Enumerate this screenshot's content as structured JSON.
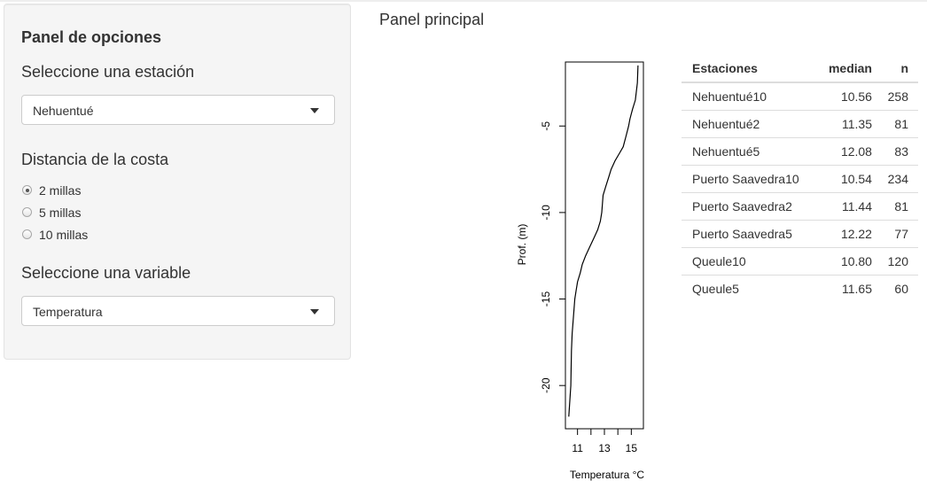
{
  "sidebar": {
    "title": "Panel de opciones",
    "station": {
      "label": "Seleccione una estación",
      "selected": "Nehuentué"
    },
    "distance": {
      "label": "Distancia de la costa",
      "options": [
        {
          "label": "2 millas",
          "checked": true
        },
        {
          "label": "5 millas",
          "checked": false
        },
        {
          "label": "10 millas",
          "checked": false
        }
      ]
    },
    "variable": {
      "label": "Seleccione una variable",
      "selected": "Temperatura"
    }
  },
  "main": {
    "title": "Panel principal"
  },
  "chart_data": {
    "type": "line",
    "title": "",
    "xlabel": "Temperatura °C",
    "ylabel": "Prof. (m)",
    "xlim": [
      10.1,
      15.9
    ],
    "ylim": [
      -22.5,
      -1.3
    ],
    "xticks": [
      11,
      12,
      13,
      14,
      15
    ],
    "xtick_labels": [
      "11",
      "",
      "13",
      "",
      "15"
    ],
    "yticks": [
      -5,
      -10,
      -15,
      -20
    ],
    "ytick_labels": [
      "-5",
      "-10",
      "-15",
      "-20"
    ],
    "grid": false,
    "series": [
      {
        "x": [
          15.5,
          15.45,
          15.3,
          15.1,
          15.0,
          14.9,
          14.8,
          14.6,
          14.4,
          14.1,
          13.8,
          13.5,
          13.3,
          13.1,
          12.9,
          12.8,
          12.7,
          12.5,
          12.2,
          11.9,
          11.6,
          11.35,
          11.2,
          11.0,
          10.9,
          10.8,
          10.7,
          10.6,
          10.55,
          10.5,
          10.35
        ],
        "y": [
          -1.5,
          -2.5,
          -3.5,
          -4.0,
          -4.3,
          -4.6,
          -5.0,
          -5.6,
          -6.2,
          -6.6,
          -7.0,
          -7.5,
          -8.0,
          -8.5,
          -9.0,
          -10.0,
          -10.5,
          -11.0,
          -11.5,
          -12.0,
          -12.5,
          -13.0,
          -13.5,
          -14.0,
          -14.5,
          -15.0,
          -16.0,
          -17.0,
          -18.0,
          -20.0,
          -21.8
        ]
      }
    ]
  },
  "table": {
    "headers": {
      "name": "Estaciones",
      "median": "median",
      "n": "n"
    },
    "rows": [
      {
        "name": "Nehuentué10",
        "median": "10.56",
        "n": "258"
      },
      {
        "name": "Nehuentué2",
        "median": "11.35",
        "n": "81"
      },
      {
        "name": "Nehuentué5",
        "median": "12.08",
        "n": "83"
      },
      {
        "name": "Puerto Saavedra10",
        "median": "10.54",
        "n": "234"
      },
      {
        "name": "Puerto Saavedra2",
        "median": "11.44",
        "n": "81"
      },
      {
        "name": "Puerto Saavedra5",
        "median": "12.22",
        "n": "77"
      },
      {
        "name": "Queule10",
        "median": "10.80",
        "n": "120"
      },
      {
        "name": "Queule5",
        "median": "11.65",
        "n": "60"
      }
    ]
  }
}
